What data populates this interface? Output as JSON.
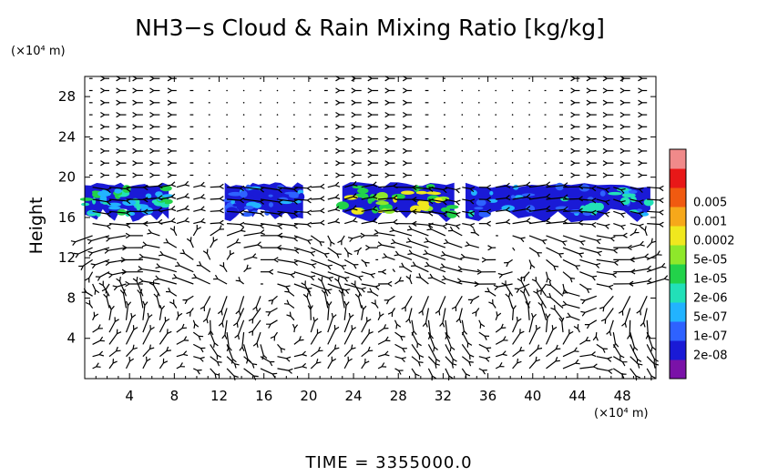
{
  "chart_data": {
    "type": "heatmap",
    "title": "NH3−s Cloud & Rain Mixing Ratio [kg/kg]",
    "ylabel": "Height",
    "y_unit_label": "(×10⁴ m)",
    "x_unit_label": "(×10⁴ m)",
    "xlim": [
      0,
      51
    ],
    "ylim": [
      0,
      30
    ],
    "x_ticks": [
      4,
      8,
      12,
      16,
      20,
      24,
      28,
      32,
      36,
      40,
      44,
      48
    ],
    "y_ticks": [
      4,
      8,
      12,
      16,
      20,
      24,
      28
    ],
    "x_tick_labels": [
      "4",
      "8",
      "12",
      "16",
      "20",
      "24",
      "28",
      "32",
      "36",
      "40",
      "44",
      "48"
    ],
    "y_tick_labels": [
      "4",
      "8",
      "12",
      "16",
      "20",
      "24",
      "28"
    ],
    "colorbar": {
      "levels": [
        "2e-08",
        "1e-07",
        "5e-07",
        "2e-06",
        "1e-05",
        "5e-05",
        "0.0002",
        "0.001",
        "0.005"
      ],
      "colors": [
        "#7a12a8",
        "#1a1ad6",
        "#2e62ff",
        "#22b3ff",
        "#22e0b8",
        "#22d24a",
        "#8ee82a",
        "#f0e81e",
        "#f6a81a",
        "#f05a10",
        "#e81818",
        "#f08a8a"
      ]
    },
    "cloud_layer": {
      "height_range": [
        15.5,
        19.5
      ],
      "segments": [
        {
          "x_range": [
            0,
            7.5
          ],
          "level_index": 4
        },
        {
          "x_range": [
            12.5,
            19.5
          ],
          "level_index": 2
        },
        {
          "x_range": [
            23,
            33
          ],
          "level_index": 6
        },
        {
          "x_range": [
            34,
            50.5
          ],
          "level_index": 3
        }
      ]
    },
    "wind_vectors": {
      "description": "overlaid velocity field arrows",
      "dominant_features": [
        "westerly flow aloft",
        "convective cells near x=16 and x=44"
      ]
    },
    "time_label": "TIME  =  3355000.0"
  }
}
